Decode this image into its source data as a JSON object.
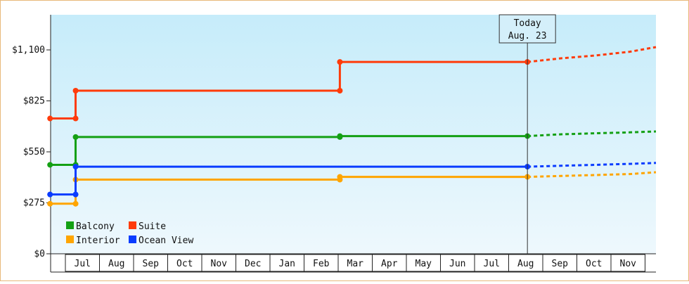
{
  "chart_data": {
    "type": "line",
    "step": true,
    "today": {
      "label_line1": "Today",
      "label_line2": "Aug. 23",
      "x": 14
    },
    "y_ticks": [
      {
        "value": 0,
        "label": "$0"
      },
      {
        "value": 275,
        "label": "$275"
      },
      {
        "value": 550,
        "label": "$550"
      },
      {
        "value": 825,
        "label": "$825"
      },
      {
        "value": 1100,
        "label": "$1,100"
      }
    ],
    "ylim": [
      0,
      1100
    ],
    "x_months": [
      "Jul",
      "Aug",
      "Sep",
      "Oct",
      "Nov",
      "Dec",
      "Jan",
      "Feb",
      "Mar",
      "Apr",
      "May",
      "Jun",
      "Jul",
      "Aug",
      "Sep",
      "Oct",
      "Nov"
    ],
    "series": [
      {
        "name": "Balcony",
        "color": "#14a014",
        "points": [
          [
            0,
            480
          ],
          [
            0.75,
            480
          ],
          [
            0.75,
            630
          ],
          [
            8.5,
            630
          ],
          [
            8.5,
            635
          ],
          [
            14,
            635
          ]
        ],
        "forecast": [
          [
            14,
            635
          ],
          [
            15,
            645
          ],
          [
            16,
            650
          ],
          [
            17,
            655
          ],
          [
            18,
            660
          ]
        ]
      },
      {
        "name": "Suite",
        "color": "#ff3b0a",
        "points": [
          [
            0,
            730
          ],
          [
            0.75,
            730
          ],
          [
            0.75,
            880
          ],
          [
            8.5,
            880
          ],
          [
            8.5,
            1035
          ],
          [
            14,
            1035
          ]
        ],
        "forecast": [
          [
            14,
            1035
          ],
          [
            15,
            1055
          ],
          [
            16,
            1070
          ],
          [
            17,
            1090
          ],
          [
            18,
            1115
          ]
        ]
      },
      {
        "name": "Interior",
        "color": "#ffa500",
        "points": [
          [
            0,
            270
          ],
          [
            0.75,
            270
          ],
          [
            0.75,
            400
          ],
          [
            8.5,
            400
          ],
          [
            8.5,
            415
          ],
          [
            14,
            415
          ]
        ],
        "forecast": [
          [
            14,
            415
          ],
          [
            15,
            420
          ],
          [
            16,
            425
          ],
          [
            17,
            430
          ],
          [
            18,
            440
          ]
        ]
      },
      {
        "name": "Ocean View",
        "color": "#0a3cff",
        "points": [
          [
            0,
            320
          ],
          [
            0.75,
            320
          ],
          [
            0.75,
            470
          ],
          [
            14,
            470
          ]
        ],
        "forecast": [
          [
            14,
            470
          ],
          [
            15,
            475
          ],
          [
            16,
            480
          ],
          [
            17,
            485
          ],
          [
            18,
            490
          ]
        ]
      }
    ],
    "legend_position": "bottom-left"
  },
  "colors": {
    "plot_bg_top": "#c6ecfa",
    "plot_bg_bottom": "#eef8fd",
    "frame": "#e8b87a",
    "axis": "#222222"
  }
}
